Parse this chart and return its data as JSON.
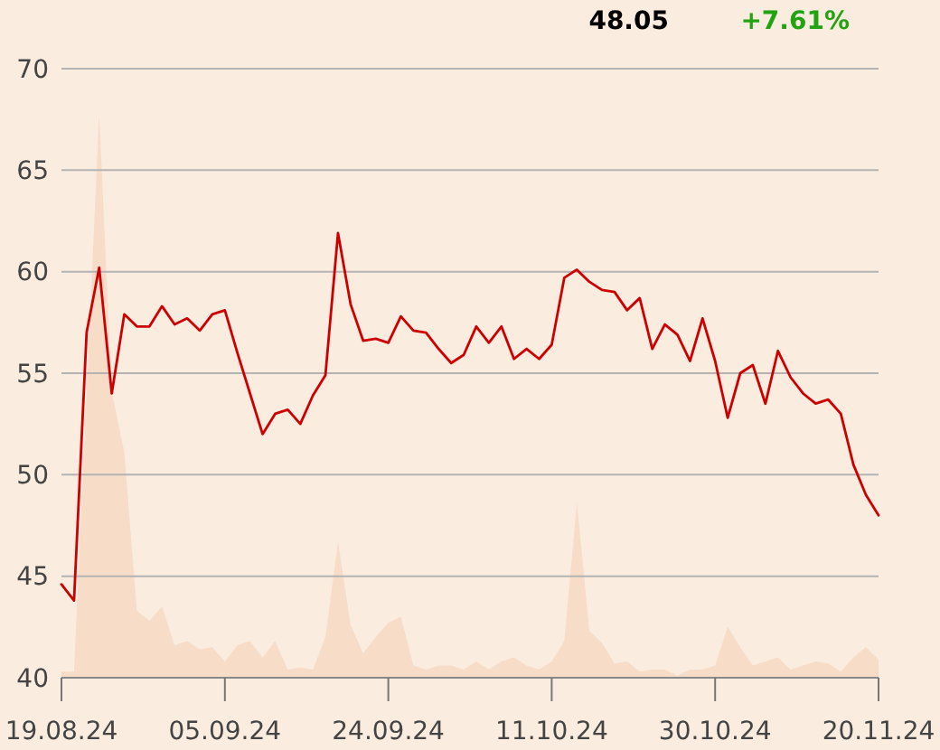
{
  "chart_data": {
    "type": "line",
    "categories": [
      "19.08.24",
      null,
      null,
      null,
      null,
      null,
      null,
      null,
      null,
      null,
      null,
      null,
      null,
      "05.09.24",
      null,
      null,
      null,
      null,
      null,
      null,
      null,
      null,
      null,
      null,
      null,
      null,
      "24.09.24",
      null,
      null,
      null,
      null,
      null,
      null,
      null,
      null,
      null,
      null,
      null,
      null,
      "11.10.24",
      null,
      null,
      null,
      null,
      null,
      null,
      null,
      null,
      null,
      null,
      null,
      null,
      "30.10.24",
      null,
      null,
      null,
      null,
      null,
      null,
      null,
      null,
      null,
      null,
      null,
      null,
      "20.11.24"
    ],
    "series": [
      {
        "type": "area",
        "color": "#f7dcc8",
        "values": [
          40.3,
          40.3,
          54.0,
          67.8,
          54.1,
          51.1,
          43.3,
          42.8,
          43.5,
          41.6,
          41.8,
          41.4,
          41.5,
          40.8,
          41.6,
          41.8,
          41.0,
          41.8,
          40.4,
          40.5,
          40.4,
          42.0,
          46.7,
          42.6,
          41.2,
          42.0,
          42.7,
          43.0,
          40.6,
          40.4,
          40.6,
          40.6,
          40.4,
          40.8,
          40.4,
          40.8,
          41.0,
          40.6,
          40.4,
          40.8,
          41.8,
          48.6,
          42.3,
          41.7,
          40.7,
          40.8,
          40.3,
          40.4,
          40.4,
          40.1,
          40.4,
          40.4,
          40.6,
          42.5,
          41.5,
          40.6,
          40.8,
          41.0,
          40.4,
          40.6,
          40.8,
          40.7,
          40.3,
          41.0,
          41.5,
          40.9
        ]
      },
      {
        "color": "#cc0000",
        "values": [
          44.6,
          43.8,
          57.0,
          60.2,
          54.0,
          57.9,
          57.3,
          57.3,
          58.3,
          57.4,
          57.7,
          57.1,
          57.9,
          58.1,
          56.0,
          54.0,
          52.0,
          53.0,
          53.2,
          52.5,
          53.9,
          54.9,
          61.9,
          58.4,
          56.6,
          56.7,
          56.5,
          57.8,
          57.1,
          57.0,
          56.2,
          55.5,
          55.9,
          57.3,
          56.5,
          57.3,
          55.7,
          56.2,
          55.7,
          56.4,
          59.7,
          60.1,
          59.5,
          59.1,
          59.0,
          58.1,
          58.7,
          56.2,
          57.4,
          56.9,
          55.6,
          57.7,
          55.6,
          52.8,
          55.0,
          55.4,
          53.5,
          56.1,
          54.8,
          54.0,
          53.5,
          53.7,
          53.0,
          50.5,
          49.0,
          48.0
        ]
      }
    ],
    "ylim": [
      40,
      70
    ],
    "yticks": [
      40,
      45,
      50,
      55,
      60,
      65,
      70
    ],
    "grid": "y",
    "annotations": [
      "48.05",
      "+7.61%"
    ]
  }
}
